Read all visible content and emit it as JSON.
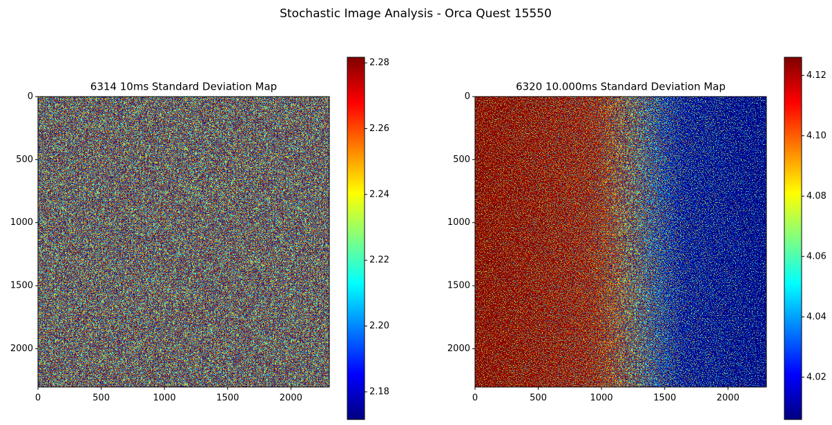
{
  "title": "Stochastic Image Analysis - Orca Quest 15550",
  "chart_data": [
    {
      "type": "heatmap",
      "title": "6314 10ms Standard Deviation Map",
      "colormap": "jet",
      "xlim": [
        0,
        2304
      ],
      "ylim": [
        2304,
        0
      ],
      "xticks": [
        0,
        500,
        1000,
        1500,
        2000
      ],
      "yticks": [
        0,
        500,
        1000,
        1500,
        2000
      ],
      "clim": [
        2.1716,
        2.2817
      ],
      "cticks": [
        2.18,
        {
          "value": 2.2,
          "label": "2.20"
        },
        2.22,
        2.24,
        2.26,
        2.28
      ]
    },
    {
      "type": "heatmap",
      "title": "6320 10.000ms Standard Deviation Map",
      "colormap": "jet",
      "xlim": [
        0,
        2304
      ],
      "ylim": [
        2304,
        0
      ],
      "xticks": [
        0,
        500,
        1000,
        1500,
        2000
      ],
      "yticks": [
        0,
        500,
        1000,
        1500,
        2000
      ],
      "clim": [
        4.006,
        4.126
      ],
      "cticks": [
        4.02,
        4.04,
        4.06,
        4.08,
        {
          "value": 4.1,
          "label": "4.10"
        },
        4.12
      ]
    }
  ]
}
